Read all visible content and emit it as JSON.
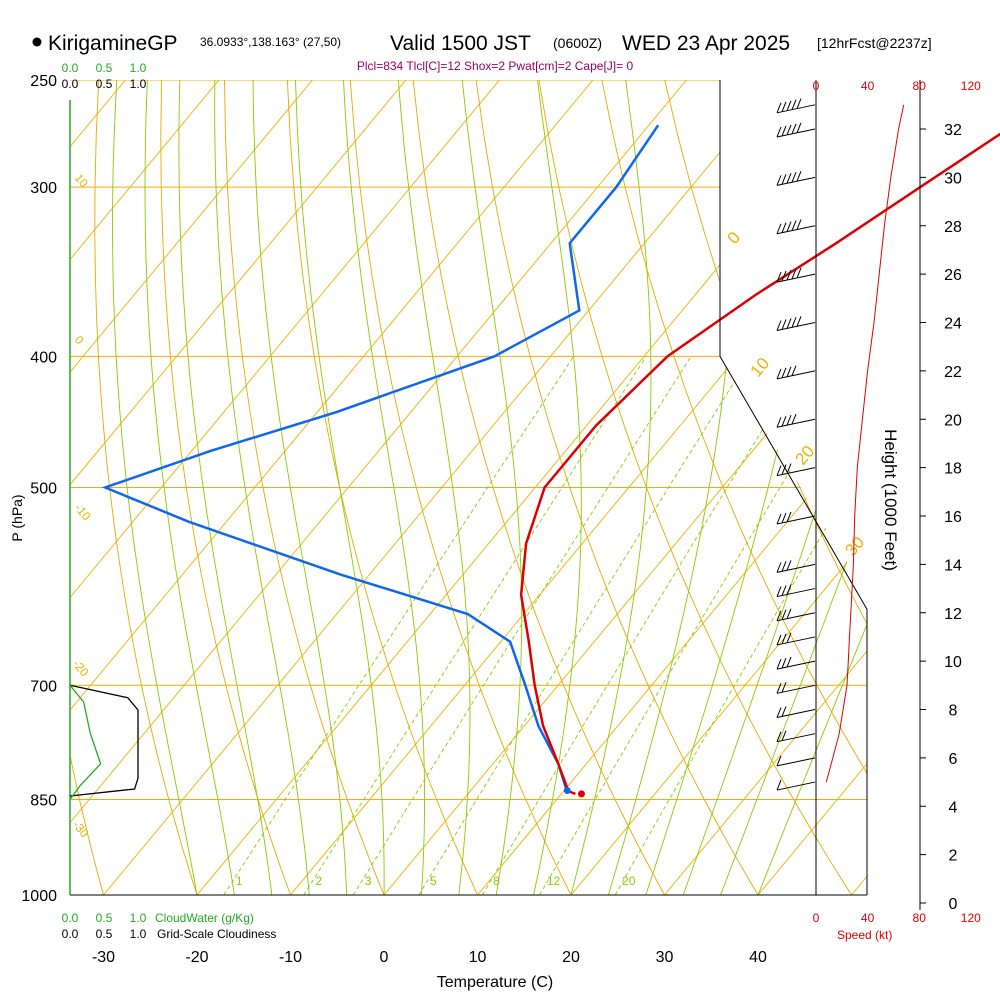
{
  "header": {
    "station": "KirigamineGP",
    "coords": "36.0933°,138.163° (27,50)",
    "valid_main": "Valid 1500 JST",
    "valid_z": "(0600Z)",
    "date": "WED 23 Apr 2025",
    "fcst": "[12hrFcst@2237z]",
    "indices": "Plcl=834 Tlcl[C]=12 Shox=2 Pwat[cm]=2 Cape[J]= 0"
  },
  "colors": {
    "temp": "#dd0000",
    "dewpoint": "#1166ee",
    "isotherm": "#f0b000",
    "isobar": "#f0b000",
    "dry_adiabat": "#e8a800",
    "moist_adiabat": "#88cc00",
    "mixing_ratio": "#88cc00",
    "cloud_water": "#22aa22",
    "cloudiness": "#000000",
    "speed": "#dd0000",
    "indices": "#990066"
  },
  "chart_data": {
    "type": "skew-t",
    "xlabel": "Temperature (C)",
    "ylabel": "P (hPa)",
    "right_axis_label": "Height (1000 Feet)",
    "pressure_ticks": [
      "250",
      "300",
      "400",
      "500",
      "700",
      "850",
      "1000"
    ],
    "temp_ticks": [
      "-30",
      "-20",
      "-10",
      "0",
      "10",
      "20",
      "30",
      "40"
    ],
    "height_ticks": [
      "0",
      "2",
      "4",
      "6",
      "8",
      "10",
      "12",
      "14",
      "16",
      "18",
      "20",
      "22",
      "24",
      "26",
      "28",
      "30",
      "32"
    ],
    "cloudwater_ticks": [
      "0.0",
      "0.5",
      "1.0"
    ],
    "cloudiness_ticks": [
      "0.0",
      "0.5",
      "1.0"
    ],
    "speed_ticks": [
      "0",
      "40",
      "80",
      "120"
    ],
    "cloudwater_label": "CloudWater (g/Kg)",
    "cloudiness_label": "Grid-Scale Cloudiness",
    "speed_label": "Speed (kt)",
    "mixing_ratio_labels": [
      "1",
      "2",
      "3",
      "5",
      "8",
      "12",
      "20"
    ],
    "dry_adiabat_labels": [
      "0",
      "10",
      "20",
      "30"
    ],
    "left_adiabat_labels": [
      "10",
      "0",
      "-10",
      "-20",
      "-30"
    ],
    "temperature": [
      {
        "p": 270,
        "t": -1
      },
      {
        "p": 300,
        "t": -5.5
      },
      {
        "p": 330,
        "t": -9.5
      },
      {
        "p": 360,
        "t": -13.5
      },
      {
        "p": 400,
        "t": -17.5
      },
      {
        "p": 450,
        "t": -19
      },
      {
        "p": 500,
        "t": -19
      },
      {
        "p": 550,
        "t": -16
      },
      {
        "p": 600,
        "t": -12
      },
      {
        "p": 650,
        "t": -7
      },
      {
        "p": 700,
        "t": -2.5
      },
      {
        "p": 750,
        "t": 2
      },
      {
        "p": 800,
        "t": 7
      },
      {
        "p": 838,
        "t": 10.5
      },
      {
        "p": 842,
        "t": 11.5
      }
    ],
    "dewpoint": [
      {
        "p": 270,
        "t": -39
      },
      {
        "p": 300,
        "t": -38
      },
      {
        "p": 330,
        "t": -38
      },
      {
        "p": 370,
        "t": -31
      },
      {
        "p": 400,
        "t": -36
      },
      {
        "p": 440,
        "t": -48
      },
      {
        "p": 470,
        "t": -58
      },
      {
        "p": 500,
        "t": -66
      },
      {
        "p": 530,
        "t": -54
      },
      {
        "p": 580,
        "t": -33
      },
      {
        "p": 620,
        "t": -16
      },
      {
        "p": 650,
        "t": -9
      },
      {
        "p": 700,
        "t": -3.5
      },
      {
        "p": 750,
        "t": 1.5
      },
      {
        "p": 800,
        "t": 7
      },
      {
        "p": 840,
        "t": 10.5
      }
    ],
    "wind_speed_kt": [
      {
        "h": 5,
        "s": 8
      },
      {
        "h": 6,
        "s": 13
      },
      {
        "h": 7,
        "s": 18
      },
      {
        "h": 8,
        "s": 21
      },
      {
        "h": 9,
        "s": 24
      },
      {
        "h": 10,
        "s": 25
      },
      {
        "h": 11,
        "s": 26
      },
      {
        "h": 12,
        "s": 27
      },
      {
        "h": 13,
        "s": 28
      },
      {
        "h": 14,
        "s": 29
      },
      {
        "h": 16,
        "s": 30
      },
      {
        "h": 18,
        "s": 32
      },
      {
        "h": 20,
        "s": 36
      },
      {
        "h": 22,
        "s": 40
      },
      {
        "h": 24,
        "s": 45
      },
      {
        "h": 26,
        "s": 49
      },
      {
        "h": 28,
        "s": 53
      },
      {
        "h": 30,
        "s": 58
      },
      {
        "h": 32,
        "s": 64
      },
      {
        "h": 33,
        "s": 68
      }
    ],
    "cloud_water_gkg": [
      {
        "p": 700,
        "v": 0.0
      },
      {
        "p": 720,
        "v": 0.2
      },
      {
        "p": 760,
        "v": 0.3
      },
      {
        "p": 800,
        "v": 0.45
      },
      {
        "p": 830,
        "v": 0.15
      },
      {
        "p": 850,
        "v": 0.0
      }
    ],
    "cloudiness": [
      {
        "p": 700,
        "v": 0.0
      },
      {
        "p": 715,
        "v": 0.85
      },
      {
        "p": 730,
        "v": 1.0
      },
      {
        "p": 820,
        "v": 1.0
      },
      {
        "p": 835,
        "v": 0.95
      },
      {
        "p": 845,
        "v": 0.0
      }
    ]
  }
}
